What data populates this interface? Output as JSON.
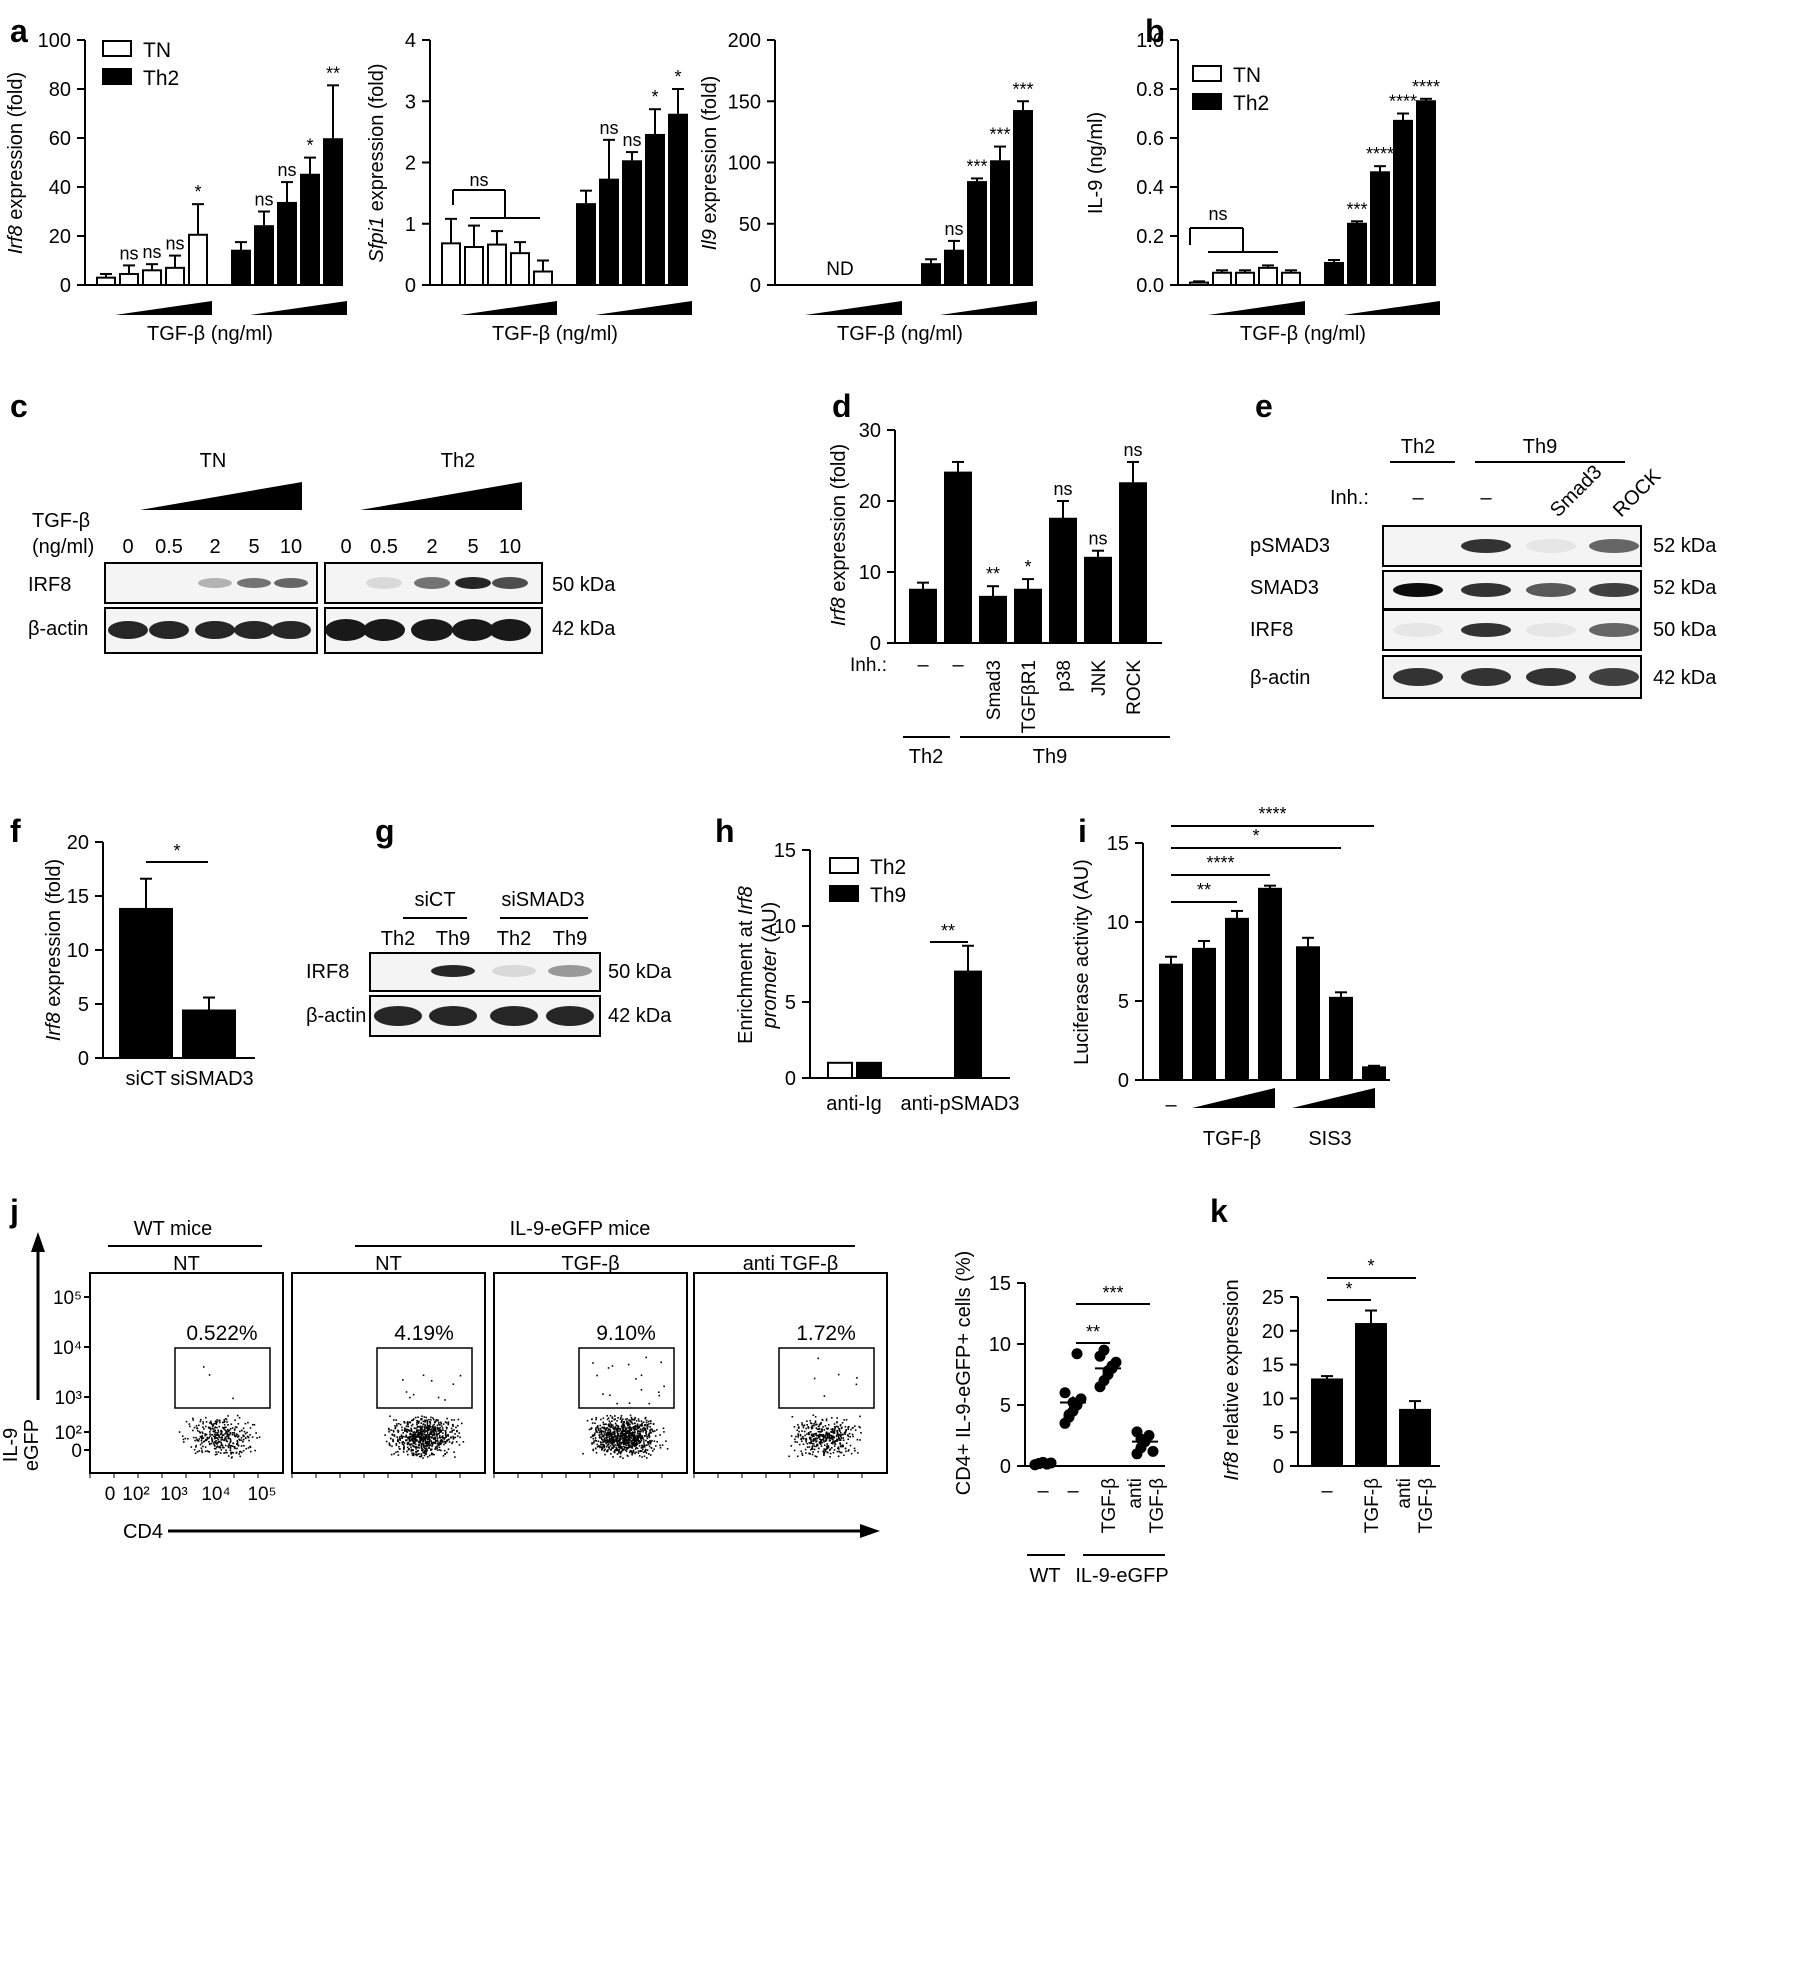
{
  "panel_letters": {
    "a": "a",
    "b": "b",
    "c": "c",
    "d": "d",
    "e": "e",
    "f": "f",
    "g": "g",
    "h": "h",
    "i": "i",
    "j": "j",
    "k": "k"
  },
  "chart_data": [
    {
      "id": "a1",
      "type": "bar",
      "title": "",
      "ylabel": "Irf8 expression (fold)",
      "xlabel": "TGF-β (ng/ml)",
      "ylim": [
        0,
        100
      ],
      "yticks": [
        0,
        20,
        40,
        60,
        80,
        100
      ],
      "legend": [
        "TN",
        "Th2"
      ],
      "legend_position": "top-left",
      "series": [
        {
          "name": "TN",
          "values": [
            3,
            4.5,
            6,
            7,
            20.5
          ],
          "errors": [
            1.5,
            3.5,
            2.5,
            5,
            12.5
          ],
          "sig": [
            "",
            "ns",
            "ns",
            "ns",
            "*"
          ]
        },
        {
          "name": "Th2",
          "values": [
            14,
            24,
            33.5,
            45,
            59.5
          ],
          "errors": [
            3.5,
            6,
            8.5,
            7,
            22
          ],
          "sig": [
            "",
            "ns",
            "ns",
            "*",
            "**"
          ]
        }
      ]
    },
    {
      "id": "a2",
      "type": "bar",
      "ylabel": "Sfpi1 expression (fold)",
      "xlabel": "TGF-β (ng/ml)",
      "ylim": [
        0,
        4
      ],
      "yticks": [
        0,
        1,
        2,
        3,
        4
      ],
      "series": [
        {
          "name": "TN",
          "values": [
            0.68,
            0.62,
            0.66,
            0.52,
            0.22
          ],
          "errors": [
            0.4,
            0.35,
            0.22,
            0.18,
            0.18
          ],
          "sig": [
            "",
            "",
            "",
            "",
            ""
          ]
        },
        {
          "name": "Th2",
          "values": [
            1.32,
            1.72,
            2.02,
            2.45,
            2.78
          ],
          "errors": [
            0.22,
            0.65,
            0.15,
            0.42,
            0.42
          ],
          "sig": [
            "",
            "ns",
            "ns",
            "*",
            "*"
          ]
        }
      ],
      "bracket_label": "ns"
    },
    {
      "id": "a3",
      "type": "bar",
      "ylabel": "Il9 expression (fold)",
      "xlabel": "TGF-β (ng/ml)",
      "ylim": [
        0,
        200
      ],
      "yticks": [
        0,
        50,
        100,
        150,
        200
      ],
      "series": [
        {
          "name": "TN",
          "values": [
            0,
            0,
            0,
            0,
            0
          ],
          "errors": [
            0,
            0,
            0,
            0,
            0
          ],
          "sig": [
            "",
            "",
            "",
            "",
            ""
          ]
        },
        {
          "name": "Th2",
          "values": [
            17,
            28,
            84,
            101,
            142
          ],
          "errors": [
            4,
            8,
            3,
            12,
            8
          ],
          "sig": [
            "",
            "ns",
            "***",
            "***",
            "***"
          ]
        }
      ],
      "annotation": "ND"
    },
    {
      "id": "b",
      "type": "bar",
      "ylabel": "IL-9 (ng/ml)",
      "xlabel": "TGF-β (ng/ml)",
      "ylim": [
        0,
        1.0
      ],
      "yticks": [
        "0.0",
        "0.2",
        "0.4",
        "0.6",
        "0.8",
        "1.0"
      ],
      "legend": [
        "TN",
        "Th2"
      ],
      "legend_position": "top-left",
      "series": [
        {
          "name": "TN",
          "values": [
            0.01,
            0.05,
            0.05,
            0.07,
            0.05
          ],
          "errors": [
            0.005,
            0.01,
            0.01,
            0.01,
            0.01
          ],
          "sig": [
            "",
            "",
            "",
            "",
            ""
          ]
        },
        {
          "name": "Th2",
          "values": [
            0.09,
            0.25,
            0.46,
            0.67,
            0.75
          ],
          "errors": [
            0.012,
            0.01,
            0.025,
            0.03,
            0.01
          ],
          "sig": [
            "",
            "***",
            "****",
            "****",
            "****"
          ]
        }
      ],
      "bracket_label": "ns"
    },
    {
      "id": "d",
      "type": "bar",
      "ylabel": "Irf8 expression (fold)",
      "ylim": [
        0,
        30
      ],
      "yticks": [
        0,
        10,
        20,
        30
      ],
      "categories": [
        "–",
        "–",
        "Smad3",
        "TGFβR1",
        "p38",
        "JNK",
        "ROCK"
      ],
      "values": [
        7.5,
        24,
        6.5,
        7.5,
        17.5,
        12,
        22.5
      ],
      "errors": [
        1,
        1.5,
        1.5,
        1.5,
        2.5,
        1,
        3
      ],
      "sig": [
        "",
        "",
        "**",
        "*",
        "ns",
        "ns",
        "ns"
      ],
      "row_label": "Inh.:",
      "groups": [
        "Th2",
        "Th9"
      ]
    },
    {
      "id": "f",
      "type": "bar",
      "ylabel": "Irf8 expression (fold)",
      "ylim": [
        0,
        20
      ],
      "yticks": [
        0,
        5,
        10,
        15,
        20
      ],
      "categories": [
        "siCT",
        "siSMAD3"
      ],
      "values": [
        13.8,
        4.4
      ],
      "errors": [
        2.8,
        1.2
      ],
      "sig": "*"
    },
    {
      "id": "h",
      "type": "bar",
      "ylabel": "Enrichment at Irf8 promoter (AU)",
      "ylim": [
        0,
        15
      ],
      "yticks": [
        0,
        5,
        10,
        15
      ],
      "categories": [
        "anti-Ig",
        "anti-pSMAD3"
      ],
      "legend": [
        "Th2",
        "Th9"
      ],
      "legend_position": "top-left",
      "series": [
        {
          "name": "Th2",
          "values": [
            1,
            0
          ]
        },
        {
          "name": "Th9",
          "values": [
            1,
            7
          ],
          "errors": [
            0,
            1.7
          ]
        }
      ],
      "sig": "**"
    },
    {
      "id": "i",
      "type": "bar",
      "ylabel": "Luciferase activity (AU)",
      "ylim": [
        0,
        15
      ],
      "yticks": [
        0,
        5,
        10,
        15
      ],
      "values": [
        7.3,
        8.3,
        10.2,
        12.1,
        8.4,
        5.2,
        0.8
      ],
      "errors": [
        0.5,
        0.5,
        0.5,
        0.2,
        0.6,
        0.35,
        0.1
      ],
      "x_labels": [
        "–",
        "TGF-β",
        "SIS3"
      ],
      "sig_lines": [
        "**",
        "****",
        "*",
        "****"
      ]
    },
    {
      "id": "j",
      "type": "scatter",
      "ylabel": "CD4+ IL-9-eGFP+ cells (%)",
      "ylim": [
        0,
        15
      ],
      "yticks": [
        0,
        5,
        10,
        15
      ],
      "categories": [
        "–",
        "–",
        "TGF-β",
        "anti TGF-β"
      ],
      "groups": [
        "WT",
        "IL-9-eGFP"
      ],
      "points": [
        [
          0.1,
          0.2,
          0.3,
          0.15,
          0.25,
          0.1,
          0.2
        ],
        [
          3.5,
          4,
          4.5,
          5,
          5.5,
          6,
          4.2,
          5.2,
          9.2
        ],
        [
          6.5,
          7,
          7.5,
          8,
          8.5,
          9,
          9.5,
          7.8,
          8.2
        ],
        [
          1,
          1.5,
          2,
          2.5,
          1.2,
          2.8,
          2.2
        ]
      ],
      "means": [
        0.2,
        5.2,
        8,
        2
      ],
      "sems": [
        0.05,
        0.5,
        0.35,
        0.3
      ],
      "sig": [
        "**",
        "***"
      ]
    },
    {
      "id": "k",
      "type": "bar",
      "ylabel": "Irf8 relative expression",
      "ylim": [
        0,
        25
      ],
      "yticks": [
        0,
        5,
        10,
        15,
        20,
        25
      ],
      "categories": [
        "–",
        "TGF-β",
        "anti TGF-β"
      ],
      "values": [
        12.8,
        21,
        8.3
      ],
      "errors": [
        0.5,
        2,
        1.3
      ],
      "sig": [
        "*",
        "*"
      ]
    }
  ],
  "blots": {
    "c": {
      "groups": [
        "TN",
        "Th2"
      ],
      "row_header": [
        "TGF-β",
        "(ng/ml)"
      ],
      "doses": [
        "0",
        "0.5",
        "2",
        "5",
        "10"
      ],
      "rows": [
        "IRF8",
        "β-actin"
      ],
      "kda": [
        "50 kDa",
        "42 kDa"
      ]
    },
    "e": {
      "groups": [
        "Th2",
        "Th9"
      ],
      "row_header": "Inh.:",
      "lanes": [
        "–",
        "–",
        "Smad3",
        "ROCK"
      ],
      "rows": [
        "pSMAD3",
        "SMAD3",
        "IRF8",
        "β-actin"
      ],
      "kda": [
        "52 kDa",
        "52 kDa",
        "50 kDa",
        "42 kDa"
      ]
    },
    "g": {
      "groups": [
        "siCT",
        "siSMAD3"
      ],
      "lanes": [
        "Th2",
        "Th9",
        "Th2",
        "Th9"
      ],
      "rows": [
        "IRF8",
        "β-actin"
      ],
      "kda": [
        "50 kDa",
        "42 kDa"
      ]
    }
  },
  "flow": {
    "groups": [
      "WT mice",
      "IL-9-eGFP mice"
    ],
    "plots": [
      {
        "title": "NT",
        "percent": "0.522%"
      },
      {
        "title": "NT",
        "percent": "4.19%"
      },
      {
        "title": "TGF-β",
        "percent": "9.10%"
      },
      {
        "title": "anti TGF-β",
        "percent": "1.72%"
      }
    ],
    "yaxis": [
      "IL-9",
      "eGFP"
    ],
    "xaxis": "CD4",
    "yticks": [
      "10⁵",
      "10⁴",
      "10³",
      "10²",
      "0"
    ],
    "xticks": [
      "0",
      "10²",
      "10³",
      "10⁴",
      "10⁵"
    ]
  }
}
